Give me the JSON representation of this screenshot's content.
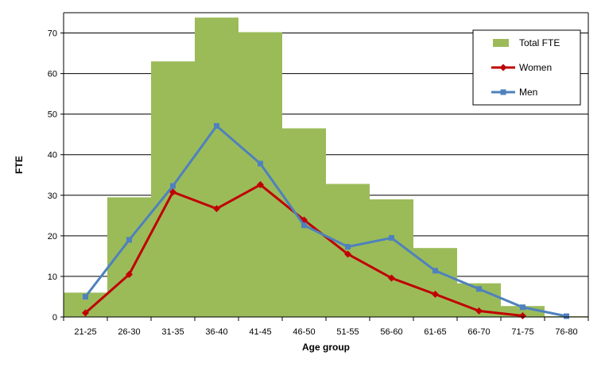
{
  "chart_data": {
    "type": "bar",
    "xlabel": "Age group",
    "ylabel": "FTE",
    "ylim": [
      0,
      75
    ],
    "yticks": [
      0,
      10,
      20,
      30,
      40,
      50,
      60,
      70
    ],
    "grid": true,
    "legend_position": "top-right",
    "categories": [
      "21-25",
      "26-30",
      "31-35",
      "36-40",
      "41-45",
      "46-50",
      "51-55",
      "56-60",
      "61-65",
      "66-70",
      "71-75",
      "76-80"
    ],
    "series": [
      {
        "name": "Total FTE",
        "type": "bar",
        "color": "#9bbb59",
        "values": [
          6.0,
          29.5,
          63.0,
          73.8,
          70.2,
          46.5,
          32.8,
          29.0,
          17.0,
          8.3,
          2.7,
          0.2
        ]
      },
      {
        "name": "Women",
        "type": "line",
        "marker": "diamond",
        "color": "#c00000",
        "values": [
          1.0,
          10.5,
          30.8,
          26.7,
          32.6,
          23.9,
          15.5,
          9.6,
          5.6,
          1.5,
          0.3,
          null
        ]
      },
      {
        "name": "Men",
        "type": "line",
        "marker": "square",
        "color": "#4f81bd",
        "values": [
          5.0,
          19.0,
          32.3,
          47.1,
          37.8,
          22.6,
          17.3,
          19.5,
          11.4,
          6.9,
          2.4,
          0.2
        ]
      }
    ]
  }
}
